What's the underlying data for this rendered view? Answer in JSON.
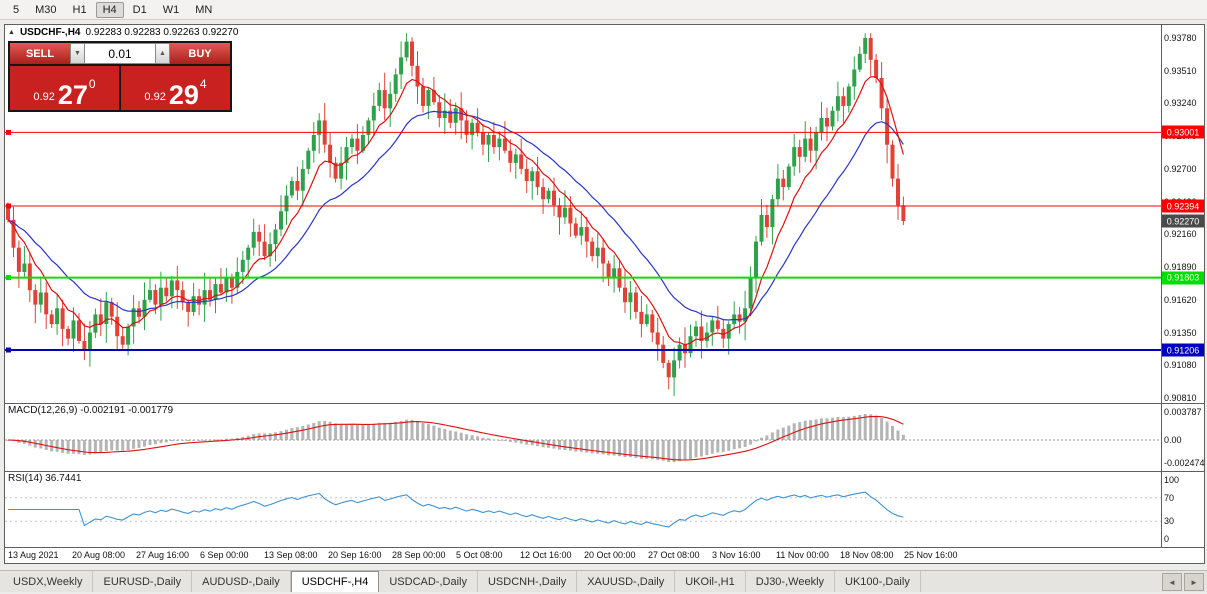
{
  "toolbar": {
    "timeframes": [
      "5",
      "M30",
      "H1",
      "H4",
      "D1",
      "W1",
      "MN"
    ],
    "active_timeframe": "H4"
  },
  "chart": {
    "collapse_icon": "▲",
    "symbol_period": "USDCHF-,H4",
    "ohlc": "0.92283 0.92283 0.92263 0.92270",
    "trade": {
      "sell_label": "SELL",
      "buy_label": "BUY",
      "lot": "0.01",
      "spinner_down": "▼",
      "spinner_up": "▲",
      "sell_price_small": "0.92",
      "sell_price_big": "27",
      "sell_price_sup": "0",
      "buy_price_small": "0.92",
      "buy_price_big": "29",
      "buy_price_sup": "4"
    }
  },
  "panes": {
    "macd_label": "MACD(12,26,9) -0.002191 -0.001779",
    "macd_axis": {
      "top": "0.003787",
      "zero": "0.00",
      "bottom": "-0.002474"
    },
    "rsi_label": "RSI(14) 36.7441",
    "rsi_axis": [
      "100",
      "70",
      "30",
      "0"
    ]
  },
  "tabs": {
    "items": [
      "USDX,Weekly",
      "EURUSD-,Daily",
      "AUDUSD-,Daily",
      "USDCHF-,H4",
      "USDCAD-,Daily",
      "USDCNH-,Daily",
      "XAUUSD-,Daily",
      "UKOil-,H1",
      "DJ30-,Weekly",
      "UK100-,Daily"
    ],
    "active": "USDCHF-,H4",
    "scroll_left": "◄",
    "scroll_right": "►"
  },
  "chart_data": {
    "type": "candlestick",
    "symbol": "USDCHF-",
    "timeframe": "H4",
    "y_axis": {
      "min": 0.9081,
      "max": 0.9378,
      "tick_step": 0.0027,
      "labels": [
        "0.93780",
        "0.93510",
        "0.93240",
        "0.92970",
        "0.92700",
        "0.92430",
        "0.92160",
        "0.91890",
        "0.91620",
        "0.91350",
        "0.91080",
        "0.90810"
      ]
    },
    "hlines": [
      {
        "value": 0.93001,
        "label": "0.93001",
        "color": "#ff0000",
        "width": 1
      },
      {
        "value": 0.92394,
        "label": "0.92394",
        "color": "#ff0000",
        "width": 1
      },
      {
        "value": 0.91803,
        "label": "0.91803",
        "color": "#00dd00",
        "width": 2
      },
      {
        "value": 0.91206,
        "label": "0.91206",
        "color": "#0000bb",
        "width": 2
      }
    ],
    "current_price": {
      "value": 0.9227,
      "label": "0.92270"
    },
    "time_labels": [
      "13 Aug 2021",
      "20 Aug 08:00",
      "27 Aug 16:00",
      "6 Sep 00:00",
      "13 Sep 08:00",
      "20 Sep 16:00",
      "28 Sep 00:00",
      "5 Oct 08:00",
      "12 Oct 16:00",
      "20 Oct 00:00",
      "27 Oct 08:00",
      "3 Nov 16:00",
      "11 Nov 00:00",
      "18 Nov 08:00",
      "25 Nov 16:00"
    ],
    "first_open": 0.924,
    "closes": [
      0.9228,
      0.9205,
      0.9185,
      0.9192,
      0.917,
      0.9158,
      0.9168,
      0.915,
      0.9142,
      0.9155,
      0.9138,
      0.913,
      0.9145,
      0.9128,
      0.912,
      0.9135,
      0.915,
      0.9142,
      0.916,
      0.9148,
      0.9132,
      0.9125,
      0.914,
      0.9155,
      0.9148,
      0.9162,
      0.917,
      0.9158,
      0.9172,
      0.9165,
      0.9178,
      0.917,
      0.916,
      0.9152,
      0.9165,
      0.9158,
      0.917,
      0.9162,
      0.9175,
      0.9168,
      0.918,
      0.9172,
      0.9185,
      0.9195,
      0.9205,
      0.9218,
      0.921,
      0.9198,
      0.9208,
      0.922,
      0.9235,
      0.9248,
      0.926,
      0.9252,
      0.927,
      0.9285,
      0.9298,
      0.931,
      0.929,
      0.9275,
      0.9262,
      0.9275,
      0.9288,
      0.9295,
      0.9285,
      0.9298,
      0.931,
      0.9322,
      0.9335,
      0.932,
      0.9332,
      0.9348,
      0.9362,
      0.9375,
      0.9355,
      0.9338,
      0.9322,
      0.9335,
      0.9325,
      0.9312,
      0.9318,
      0.9308,
      0.932,
      0.931,
      0.9298,
      0.9308,
      0.93,
      0.929,
      0.9298,
      0.9288,
      0.9295,
      0.9285,
      0.9275,
      0.9282,
      0.927,
      0.926,
      0.9268,
      0.9255,
      0.9245,
      0.9252,
      0.924,
      0.923,
      0.9238,
      0.9225,
      0.9215,
      0.9222,
      0.921,
      0.9198,
      0.9205,
      0.9192,
      0.918,
      0.9188,
      0.9172,
      0.916,
      0.9168,
      0.9152,
      0.9142,
      0.915,
      0.9135,
      0.9125,
      0.911,
      0.9098,
      0.9112,
      0.9125,
      0.9118,
      0.9132,
      0.914,
      0.9128,
      0.9135,
      0.9145,
      0.9138,
      0.913,
      0.9142,
      0.915,
      0.9144,
      0.9155,
      0.918,
      0.921,
      0.9232,
      0.9222,
      0.9245,
      0.9262,
      0.9255,
      0.9272,
      0.9288,
      0.928,
      0.9295,
      0.9285,
      0.93,
      0.9312,
      0.9305,
      0.9318,
      0.933,
      0.9322,
      0.9338,
      0.9352,
      0.9365,
      0.9378,
      0.936,
      0.9345,
      0.932,
      0.929,
      0.9262,
      0.924,
      0.9227
    ],
    "ma_fast_period": 8,
    "ma_slow_period": 20,
    "macd_params": [
      12,
      26,
      9
    ],
    "macd_values": {
      "main": -0.002191,
      "signal": -0.001779
    },
    "rsi_period": 14,
    "rsi_value": 36.7441,
    "colors": {
      "up": "#2fa14a",
      "down": "#e04237",
      "ma_fast": "#dd1111",
      "ma_slow": "#2a35c8",
      "macd_hist": "#b5b5b5",
      "macd_signal": "#dd1111",
      "rsi_line": "#3f93d2",
      "price_tag_current": "#4a4a4a"
    }
  }
}
